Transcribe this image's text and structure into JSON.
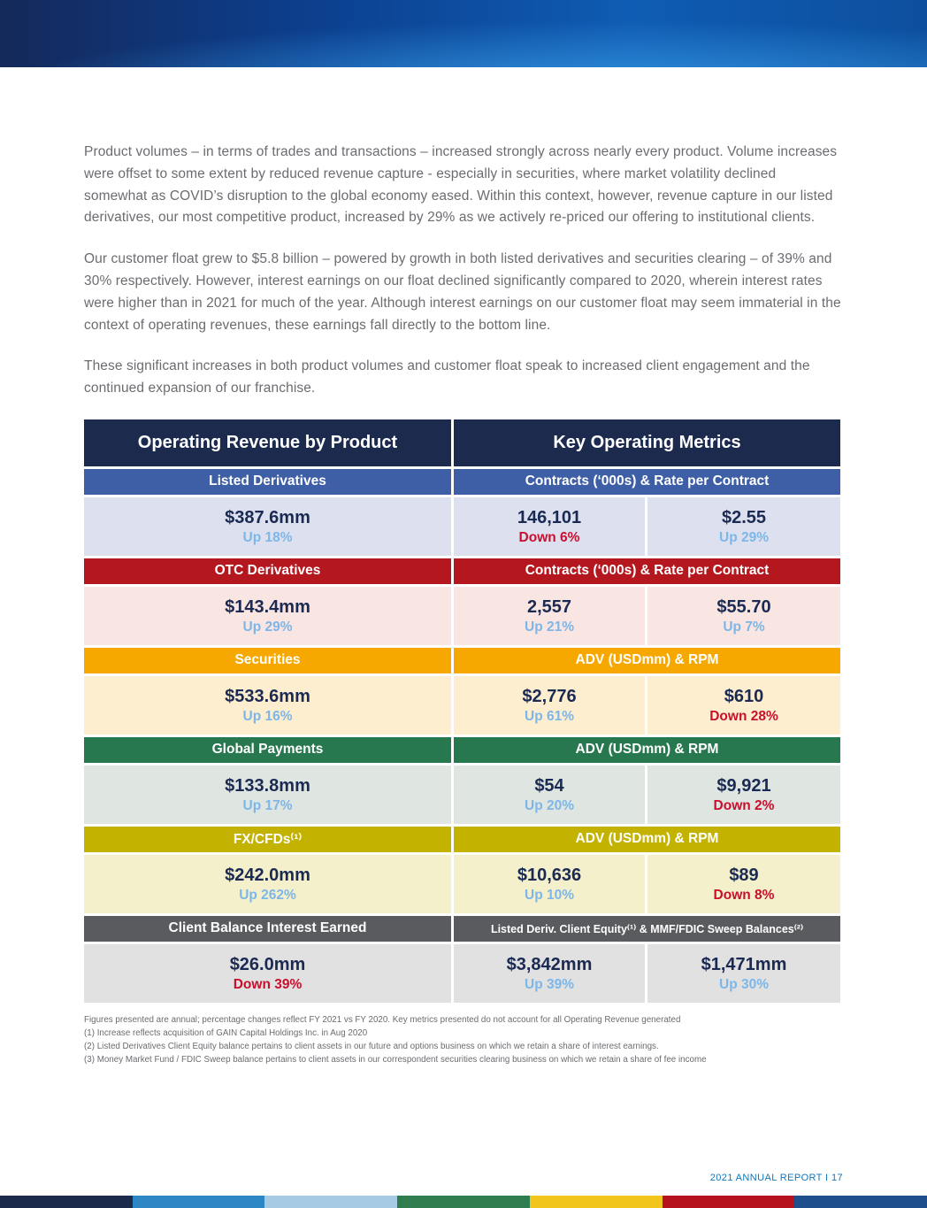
{
  "paragraphs": [
    "Product volumes – in terms of trades and transactions – increased strongly across nearly every product.  Volume increases were offset to some extent by reduced revenue capture - especially in securities, where market volatility declined somewhat as COVID’s disruption to the global economy eased.  Within this context, however, revenue capture in our listed derivatives, our most competitive product, increased by 29% as we actively re-priced our offering to institutional clients.",
    "Our customer float grew to $5.8 billion – powered by growth in both listed derivatives and securities clearing – of 39% and 30% respectively. However, interest earnings on our float declined significantly compared to 2020, wherein interest rates were higher than in 2021 for much of the year.  Although interest earnings on our customer float may seem immaterial in the context of operating revenues, these earnings fall directly to the bottom line.",
    "These significant increases in both product volumes and customer float speak to increased client engagement and the continued expansion of our franchise."
  ],
  "table": {
    "header_left": "Operating Revenue by Product",
    "header_right": "Key Operating Metrics",
    "rows": [
      {
        "product": "Listed Derivatives",
        "metric_label": "Contracts (‘000s) & Rate per Contract",
        "revenue": "$387.6mm",
        "revenue_change": "Up 18%",
        "revenue_dir": "up",
        "metric1": "146,101",
        "metric1_change": "Down 6%",
        "metric1_dir": "down",
        "metric2": "$2.55",
        "metric2_change": "Up 29%",
        "metric2_dir": "up"
      },
      {
        "product": "OTC Derivatives",
        "metric_label": "Contracts (‘000s) & Rate per Contract",
        "revenue": "$143.4mm",
        "revenue_change": "Up 29%",
        "revenue_dir": "up",
        "metric1": "2,557",
        "metric1_change": "Up 21%",
        "metric1_dir": "up",
        "metric2": "$55.70",
        "metric2_change": "Up 7%",
        "metric2_dir": "up"
      },
      {
        "product": "Securities",
        "metric_label": "ADV (USDmm) & RPM",
        "revenue": "$533.6mm",
        "revenue_change": "Up 16%",
        "revenue_dir": "up",
        "metric1": "$2,776",
        "metric1_change": "Up 61%",
        "metric1_dir": "up",
        "metric2": "$610",
        "metric2_change": "Down 28%",
        "metric2_dir": "down"
      },
      {
        "product": "Global Payments",
        "metric_label": "ADV (USDmm) & RPM",
        "revenue": "$133.8mm",
        "revenue_change": "Up 17%",
        "revenue_dir": "up",
        "metric1": "$54",
        "metric1_change": "Up 20%",
        "metric1_dir": "up",
        "metric2": "$9,921",
        "metric2_change": "Down 2%",
        "metric2_dir": "down"
      },
      {
        "product": "FX/CFDs⁽¹⁾",
        "metric_label": "ADV (USDmm) & RPM",
        "revenue": "$242.0mm",
        "revenue_change": "Up 262%",
        "revenue_dir": "up",
        "metric1": "$10,636",
        "metric1_change": "Up 10%",
        "metric1_dir": "up",
        "metric2": "$89",
        "metric2_change": "Down 8%",
        "metric2_dir": "down"
      },
      {
        "product": "Client Balance Interest Earned",
        "metric_label": "Listed Deriv. Client Equity⁽¹⁾ & MMF/FDIC Sweep Balances⁽²⁾",
        "revenue": "$26.0mm",
        "revenue_change": "Down 39%",
        "revenue_dir": "down",
        "metric1": "$3,842mm",
        "metric1_change": "Up 39%",
        "metric1_dir": "up",
        "metric2": "$1,471mm",
        "metric2_change": "Up 30%",
        "metric2_dir": "up"
      }
    ]
  },
  "footnotes": [
    "Figures presented are annual; percentage changes reflect FY 2021 vs FY 2020. Key metrics presented do not account for all Operating Revenue generated",
    "(1) Increase reflects acquisition of GAIN Capital Holdings Inc. in Aug 2020",
    "(2) Listed Derivatives Client Equity balance pertains to client assets in our future and options business on which we retain a share of interest earnings.",
    "(3) Money Market Fund / FDIC Sweep balance pertains to client assets in our correspondent securities clearing business on which we retain a share of fee income"
  ],
  "footer": {
    "page_label": "2021 ANNUAL REPORT I 17"
  },
  "colors": {
    "header_navy": "#1C2B4D",
    "listed_derivatives": "#3E5FA5",
    "otc_derivatives": "#B5171E",
    "securities": "#F7A800",
    "global_payments": "#27784E",
    "fx_cfds": "#C3B200",
    "client_balance": "#5A5B5E",
    "up_change": "#7DB6E8",
    "down_change": "#C8102E",
    "footer_blue": "#0E76BC",
    "bottom_strip": [
      "#1B2A4A",
      "#2C86C4",
      "#A6C9E4",
      "#2F7D4F",
      "#F2C51D",
      "#B5121B",
      "#1E4E8C"
    ]
  }
}
